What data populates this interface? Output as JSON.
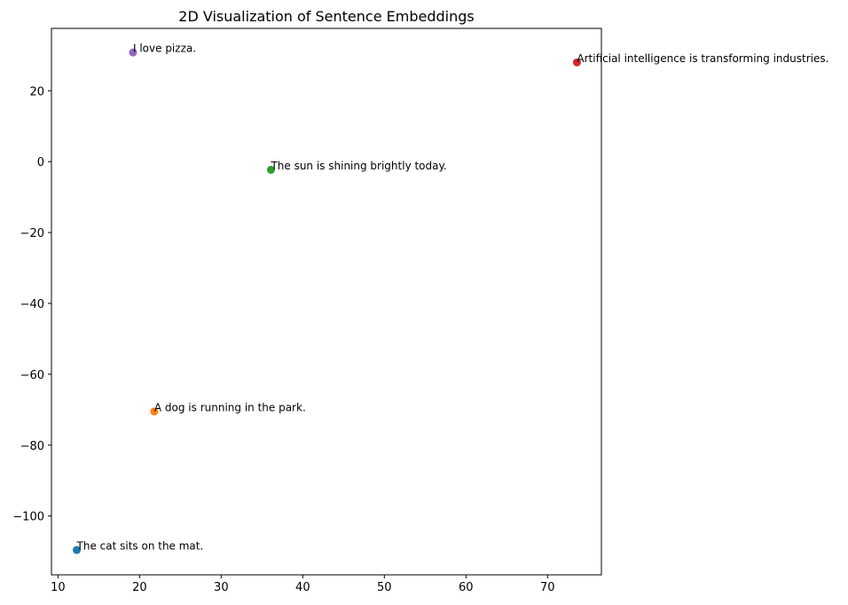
{
  "chart_data": {
    "type": "scatter",
    "title": "2D Visualization of Sentence Embeddings",
    "xlabel": "",
    "ylabel": "",
    "xlim": [
      9.2,
      76.6
    ],
    "ylim": [
      -116.6,
      37.6
    ],
    "x_ticks": [
      10,
      20,
      30,
      40,
      50,
      60,
      70
    ],
    "y_ticks": [
      20,
      0,
      -20,
      -40,
      -60,
      -80,
      -100
    ],
    "grid": false,
    "points": [
      {
        "label": "The cat sits on the mat.",
        "x": 12.3,
        "y": -109.6,
        "color": "#1f77b4"
      },
      {
        "label": "A dog is running in the park.",
        "x": 21.8,
        "y": -70.5,
        "color": "#ff7f0e"
      },
      {
        "label": "The sun is shining brightly today.",
        "x": 36.1,
        "y": -2.3,
        "color": "#2ca02c"
      },
      {
        "label": "Artificial intelligence is transforming industries.",
        "x": 73.6,
        "y": 28.0,
        "color": "#d62728"
      },
      {
        "label": "I love pizza.",
        "x": 19.2,
        "y": 30.8,
        "color": "#9467bd"
      }
    ]
  }
}
